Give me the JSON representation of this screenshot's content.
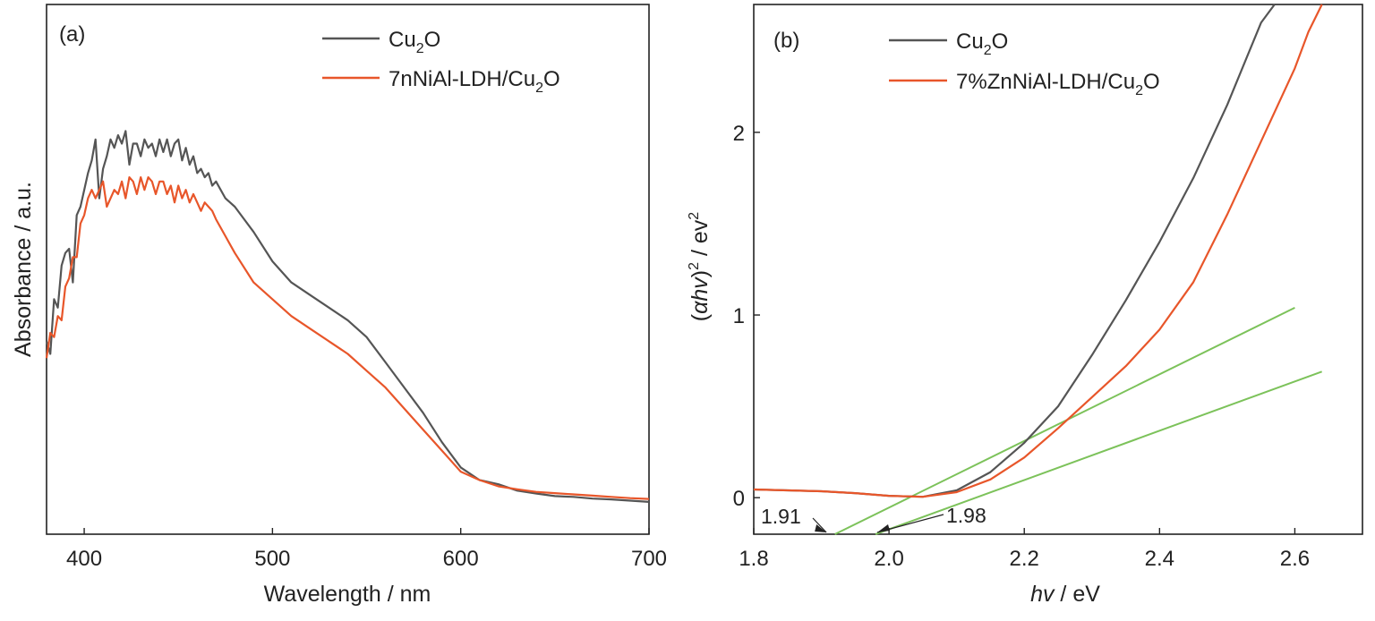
{
  "chart_data": [
    {
      "type": "line",
      "panel_label": "(a)",
      "xlabel": "Wavelength / nm",
      "ylabel": "Absorbance / a.u.",
      "xlim": [
        380,
        700
      ],
      "ylim": [
        0,
        1
      ],
      "y_ticks_shown": false,
      "x_ticks": [
        400,
        500,
        600,
        700
      ],
      "legend_position": "top-right",
      "series": [
        {
          "name": "Cu2O",
          "label_parts": [
            "Cu",
            "2",
            "O"
          ],
          "color": "#555555",
          "x": [
            380,
            382,
            384,
            386,
            388,
            390,
            392,
            394,
            396,
            398,
            400,
            402,
            404,
            406,
            408,
            410,
            412,
            414,
            416,
            418,
            420,
            422,
            424,
            426,
            428,
            430,
            432,
            434,
            436,
            438,
            440,
            442,
            444,
            446,
            448,
            450,
            452,
            454,
            456,
            458,
            460,
            462,
            464,
            466,
            468,
            470,
            475,
            480,
            490,
            500,
            510,
            520,
            530,
            540,
            550,
            560,
            570,
            580,
            590,
            600,
            610,
            620,
            630,
            640,
            650,
            660,
            670,
            680,
            690,
            700
          ],
          "values": [
            0.38,
            0.35,
            0.48,
            0.46,
            0.56,
            0.59,
            0.6,
            0.52,
            0.68,
            0.7,
            0.74,
            0.78,
            0.81,
            0.86,
            0.72,
            0.79,
            0.82,
            0.86,
            0.84,
            0.87,
            0.85,
            0.88,
            0.8,
            0.85,
            0.85,
            0.82,
            0.86,
            0.84,
            0.85,
            0.82,
            0.86,
            0.83,
            0.86,
            0.82,
            0.85,
            0.86,
            0.81,
            0.84,
            0.8,
            0.82,
            0.78,
            0.79,
            0.77,
            0.78,
            0.75,
            0.76,
            0.72,
            0.7,
            0.64,
            0.57,
            0.52,
            0.49,
            0.46,
            0.43,
            0.39,
            0.33,
            0.27,
            0.21,
            0.14,
            0.08,
            0.05,
            0.04,
            0.025,
            0.018,
            0.012,
            0.01,
            0.006,
            0.004,
            0.001,
            -0.002
          ]
        },
        {
          "name": "7nNiAl-LDH/Cu2O",
          "label_parts": [
            "7nNiAl-LDH/Cu",
            "2",
            "O"
          ],
          "color": "#e8562a",
          "x": [
            380,
            382,
            384,
            386,
            388,
            390,
            392,
            394,
            396,
            398,
            400,
            402,
            404,
            406,
            408,
            410,
            412,
            414,
            416,
            418,
            420,
            422,
            424,
            426,
            428,
            430,
            432,
            434,
            436,
            438,
            440,
            442,
            444,
            446,
            448,
            450,
            452,
            454,
            456,
            458,
            460,
            462,
            464,
            466,
            468,
            470,
            475,
            480,
            490,
            500,
            510,
            520,
            530,
            540,
            550,
            560,
            570,
            580,
            590,
            600,
            610,
            620,
            630,
            640,
            650,
            660,
            670,
            680,
            690,
            700
          ],
          "values": [
            0.34,
            0.4,
            0.39,
            0.44,
            0.43,
            0.51,
            0.53,
            0.58,
            0.58,
            0.66,
            0.68,
            0.72,
            0.74,
            0.72,
            0.74,
            0.76,
            0.7,
            0.72,
            0.74,
            0.73,
            0.76,
            0.72,
            0.77,
            0.76,
            0.73,
            0.77,
            0.74,
            0.77,
            0.76,
            0.73,
            0.76,
            0.76,
            0.73,
            0.75,
            0.71,
            0.75,
            0.72,
            0.74,
            0.71,
            0.73,
            0.71,
            0.69,
            0.71,
            0.7,
            0.69,
            0.67,
            0.63,
            0.59,
            0.52,
            0.48,
            0.44,
            0.41,
            0.38,
            0.35,
            0.31,
            0.27,
            0.22,
            0.17,
            0.12,
            0.07,
            0.05,
            0.035,
            0.028,
            0.022,
            0.019,
            0.016,
            0.013,
            0.01,
            0.007,
            0.005
          ]
        }
      ]
    },
    {
      "type": "line",
      "panel_label": "(b)",
      "xlabel_italic": "hv",
      "xlabel_rest": " / eV",
      "ylabel_parts": [
        "(",
        "αhv",
        ")",
        "2",
        " / ev",
        "2"
      ],
      "xlim": [
        1.8,
        2.7
      ],
      "ylim": [
        -0.2,
        2.7
      ],
      "x_ticks": [
        "1.8",
        "2.0",
        "2.2",
        "2.4",
        "2.6"
      ],
      "x_tick_values": [
        1.8,
        2.0,
        2.2,
        2.4,
        2.6
      ],
      "y_ticks": [
        "0",
        "1",
        "2"
      ],
      "y_tick_values": [
        0,
        1,
        2
      ],
      "legend_position": "top-left",
      "series": [
        {
          "name": "Cu2O",
          "label_parts": [
            "Cu",
            "2",
            "O"
          ],
          "color": "#555555",
          "x": [
            1.8,
            1.85,
            1.9,
            1.95,
            2.0,
            2.05,
            2.1,
            2.15,
            2.2,
            2.25,
            2.3,
            2.35,
            2.4,
            2.45,
            2.5,
            2.55,
            2.57
          ],
          "values": [
            0.045,
            0.04,
            0.035,
            0.025,
            0.01,
            0.005,
            0.04,
            0.14,
            0.3,
            0.5,
            0.78,
            1.08,
            1.4,
            1.75,
            2.15,
            2.6,
            2.7
          ]
        },
        {
          "name": "7%ZnNiAl-LDH/Cu2O",
          "label_parts": [
            "7%ZnNiAl-LDH/Cu",
            "2",
            "O"
          ],
          "color": "#e8562a",
          "x": [
            1.8,
            1.85,
            1.9,
            1.95,
            2.0,
            2.05,
            2.1,
            2.15,
            2.2,
            2.25,
            2.3,
            2.35,
            2.4,
            2.45,
            2.5,
            2.55,
            2.6,
            2.62,
            2.64
          ],
          "values": [
            0.045,
            0.04,
            0.035,
            0.025,
            0.01,
            0.005,
            0.03,
            0.1,
            0.22,
            0.38,
            0.55,
            0.72,
            0.92,
            1.18,
            1.55,
            1.95,
            2.35,
            2.55,
            2.7
          ]
        }
      ],
      "tangent_lines": [
        {
          "color": "#7cc25a",
          "x": [
            1.92,
            2.6
          ],
          "values": [
            -0.2,
            1.04
          ]
        },
        {
          "color": "#7cc25a",
          "x": [
            1.98,
            2.64
          ],
          "values": [
            -0.2,
            0.69
          ]
        }
      ],
      "annotations": [
        {
          "text": "1.91",
          "x": 1.91
        },
        {
          "text": "1.98",
          "x": 1.98
        }
      ]
    }
  ]
}
